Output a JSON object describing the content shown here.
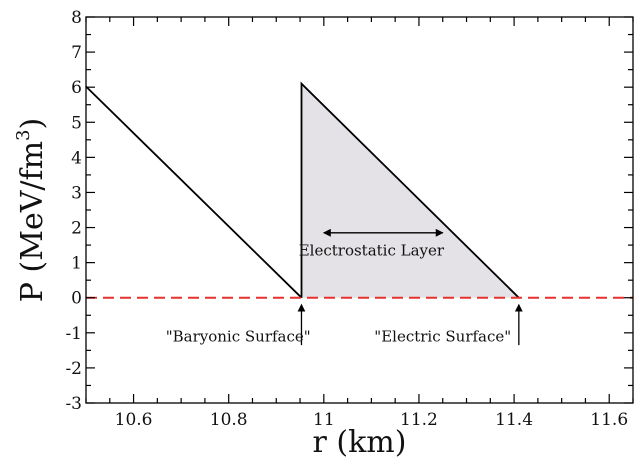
{
  "chart_data": {
    "type": "line",
    "xlabel": "r (km)",
    "ylabel_base": "P (MeV/fm",
    "ylabel_sup": "3",
    "ylabel_close": ")",
    "xlim": [
      10.5,
      11.65
    ],
    "ylim": [
      -3,
      8
    ],
    "x_ticks": [
      10.6,
      10.8,
      11.0,
      11.2,
      11.4,
      11.6
    ],
    "x_tick_labels": [
      "10.6",
      "10.8",
      "11",
      "11.2",
      "11.4",
      "11.6"
    ],
    "y_ticks": [
      -3,
      -2,
      -1,
      0,
      1,
      2,
      3,
      4,
      5,
      6,
      7,
      8
    ],
    "y_tick_labels": [
      "-3",
      "-2",
      "-1",
      "0",
      "1",
      "2",
      "3",
      "4",
      "5",
      "6",
      "7",
      "8"
    ],
    "grid": false,
    "series": [
      {
        "x": [
          10.5,
          10.953
        ],
        "y": [
          6.02,
          0.0
        ],
        "color": "#000000",
        "style": "solid"
      },
      {
        "x": [
          10.953,
          10.953,
          11.41
        ],
        "y": [
          0.0,
          6.1,
          0.0
        ],
        "color": "#000000",
        "style": "solid",
        "fill": "#e4e2e6"
      },
      {
        "x": [
          10.5,
          11.65
        ],
        "y": [
          0.0,
          0.0
        ],
        "color": "#e8302e",
        "style": "dashed"
      }
    ],
    "annotations": [
      {
        "text": "Electrostatic Layer",
        "x": 11.1,
        "y": 1.35
      },
      {
        "text": "\"Baryonic Surface\"",
        "x": 10.82,
        "y": -1.1
      },
      {
        "text": "\"Electric Surface\"",
        "x": 11.25,
        "y": -1.1
      }
    ],
    "double_arrow": {
      "x_start": 11.0,
      "x_end": 11.25,
      "y": 1.85
    },
    "surface_arrows": [
      {
        "x": 10.953,
        "y_start": -1.35,
        "y_end": -0.2
      },
      {
        "x": 11.41,
        "y_start": -1.35,
        "y_end": -0.2
      }
    ]
  }
}
